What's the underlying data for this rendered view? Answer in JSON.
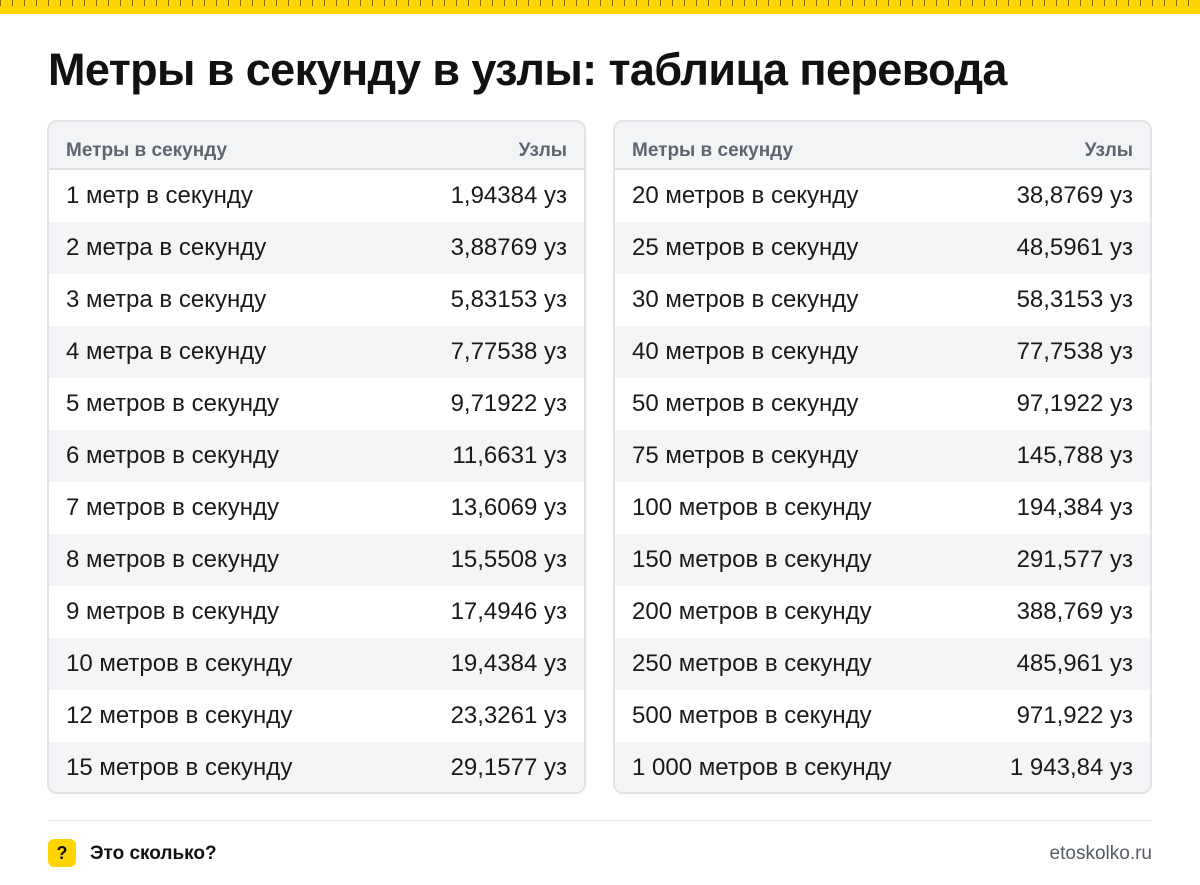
{
  "title": "Метры в секунду в узлы: таблица перевода",
  "columns": {
    "from": "Метры в секунду",
    "to": "Узлы"
  },
  "left_table": [
    {
      "label": "1 метр в секунду",
      "value": "1,94384 уз"
    },
    {
      "label": "2 метра в секунду",
      "value": "3,88769 уз"
    },
    {
      "label": "3 метра в секунду",
      "value": "5,83153 уз"
    },
    {
      "label": "4 метра в секунду",
      "value": "7,77538 уз"
    },
    {
      "label": "5 метров в секунду",
      "value": "9,71922 уз"
    },
    {
      "label": "6 метров в секунду",
      "value": "11,6631 уз"
    },
    {
      "label": "7 метров в секунду",
      "value": "13,6069 уз"
    },
    {
      "label": "8 метров в секунду",
      "value": "15,5508 уз"
    },
    {
      "label": "9 метров в секунду",
      "value": "17,4946 уз"
    },
    {
      "label": "10 метров в секунду",
      "value": "19,4384 уз"
    },
    {
      "label": "12 метров в секунду",
      "value": "23,3261 уз"
    },
    {
      "label": "15 метров в секунду",
      "value": "29,1577 уз"
    }
  ],
  "right_table": [
    {
      "label": "20 метров в секунду",
      "value": "38,8769 уз"
    },
    {
      "label": "25 метров в секунду",
      "value": "48,5961 уз"
    },
    {
      "label": "30 метров в секунду",
      "value": "58,3153 уз"
    },
    {
      "label": "40 метров в секунду",
      "value": "77,7538 уз"
    },
    {
      "label": "50 метров в секунду",
      "value": "97,1922 уз"
    },
    {
      "label": "75 метров в секунду",
      "value": "145,788 уз"
    },
    {
      "label": "100 метров в секунду",
      "value": "194,384 уз"
    },
    {
      "label": "150 метров в секунду",
      "value": "291,577 уз"
    },
    {
      "label": "200 метров в секунду",
      "value": "388,769 уз"
    },
    {
      "label": "250 метров в секунду",
      "value": "485,961 уз"
    },
    {
      "label": "500 метров в секунду",
      "value": "971,922 уз"
    },
    {
      "label": "1 000 метров в секунду",
      "value": "1 943,84 уз"
    }
  ],
  "footer": {
    "badge_symbol": "?",
    "brand": "Это сколько?",
    "site": "etoskolko.ru"
  },
  "colors": {
    "accent": "#ffd400",
    "header_bg": "#f3f4f6",
    "stripe_bg": "#f4f5f7",
    "border": "#e1e3e6"
  },
  "icons": {
    "badge": "question-mark-icon"
  }
}
